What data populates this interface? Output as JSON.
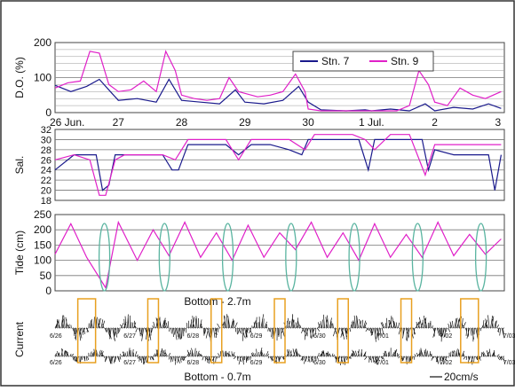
{
  "chart_data": [
    {
      "type": "line",
      "panel": "do",
      "ylabel": "D.O. (%)",
      "ylim": [
        0,
        200
      ],
      "yticks": [
        0,
        100,
        200
      ],
      "x_tick_labels": [
        {
          "t": 0.0,
          "label": "26 Jun."
        },
        {
          "t": 1.0,
          "label": "27"
        },
        {
          "t": 2.0,
          "label": "28"
        },
        {
          "t": 3.0,
          "label": "29"
        },
        {
          "t": 4.0,
          "label": "30"
        },
        {
          "t": 5.0,
          "label": "1 Jul."
        },
        {
          "t": 6.0,
          "label": "2"
        },
        {
          "t": 7.0,
          "label": "3"
        }
      ],
      "xlim": [
        0,
        7.1
      ],
      "legend": "top-right",
      "series": [
        {
          "name": "Stn. 7",
          "color": "#1a1a8c",
          "x": [
            0,
            0.25,
            0.5,
            0.7,
            0.9,
            1.0,
            1.3,
            1.6,
            1.8,
            2.0,
            2.3,
            2.6,
            2.85,
            3.0,
            3.3,
            3.6,
            3.85,
            4.0,
            4.2,
            4.6,
            4.9,
            5.0,
            5.3,
            5.6,
            5.85,
            6.0,
            6.3,
            6.6,
            6.85,
            7.05
          ],
          "y": [
            78,
            60,
            75,
            95,
            55,
            35,
            40,
            30,
            95,
            35,
            30,
            25,
            65,
            30,
            25,
            35,
            75,
            30,
            8,
            5,
            8,
            5,
            10,
            5,
            25,
            5,
            15,
            10,
            25,
            12
          ]
        },
        {
          "name": "Stn. 9",
          "color": "#e020c8",
          "x": [
            0,
            0.2,
            0.4,
            0.55,
            0.7,
            0.85,
            1.0,
            1.2,
            1.4,
            1.6,
            1.75,
            1.9,
            2.0,
            2.2,
            2.4,
            2.6,
            2.75,
            2.9,
            3.0,
            3.2,
            3.4,
            3.6,
            3.8,
            3.95,
            4.0,
            4.2,
            4.5,
            4.8,
            5.0,
            5.2,
            5.4,
            5.6,
            5.75,
            5.9,
            6.0,
            6.2,
            6.4,
            6.6,
            6.8,
            7.05
          ],
          "y": [
            70,
            85,
            90,
            175,
            170,
            80,
            60,
            65,
            90,
            60,
            175,
            120,
            50,
            40,
            35,
            40,
            100,
            60,
            55,
            45,
            50,
            60,
            110,
            60,
            10,
            5,
            5,
            5,
            5,
            5,
            5,
            20,
            120,
            80,
            30,
            20,
            70,
            50,
            40,
            60
          ]
        }
      ]
    },
    {
      "type": "line",
      "panel": "sal",
      "ylabel": "Sal.",
      "ylim": [
        18,
        32
      ],
      "yticks": [
        18,
        20,
        22,
        24,
        26,
        28,
        30,
        32
      ],
      "xlim": [
        0,
        7.1
      ],
      "series": [
        {
          "name": "Stn. 7",
          "color": "#1a1a8c",
          "x": [
            0,
            0.3,
            0.5,
            0.65,
            0.75,
            0.85,
            0.95,
            1.1,
            1.4,
            1.7,
            1.85,
            1.95,
            2.1,
            2.4,
            2.7,
            2.9,
            3.1,
            3.4,
            3.7,
            3.9,
            4.0,
            4.2,
            4.5,
            4.8,
            4.95,
            5.05,
            5.3,
            5.6,
            5.8,
            5.9,
            6.0,
            6.3,
            6.6,
            6.85,
            6.95,
            7.05
          ],
          "y": [
            24,
            27,
            27,
            27,
            20,
            21,
            27,
            27,
            27,
            27,
            24,
            24,
            29,
            29,
            29,
            27,
            29,
            29,
            28,
            27,
            30,
            30,
            30,
            30,
            24,
            30,
            30,
            30,
            30,
            24,
            28,
            27,
            27,
            27,
            20,
            27
          ]
        },
        {
          "name": "Stn. 9",
          "color": "#e020c8",
          "x": [
            0,
            0.3,
            0.55,
            0.7,
            0.8,
            0.95,
            1.1,
            1.4,
            1.7,
            1.9,
            2.1,
            2.4,
            2.7,
            2.9,
            3.1,
            3.4,
            3.7,
            3.95,
            4.1,
            4.4,
            4.7,
            4.9,
            5.05,
            5.3,
            5.6,
            5.85,
            6.0,
            6.3,
            6.6,
            6.9,
            7.05
          ],
          "y": [
            26,
            27,
            26,
            19,
            19,
            26,
            27,
            27,
            27,
            26,
            30,
            30,
            30,
            26,
            30,
            30,
            30,
            28,
            31,
            31,
            31,
            30,
            28,
            31,
            31,
            23,
            29,
            29,
            29,
            29,
            29
          ]
        }
      ]
    },
    {
      "type": "line",
      "panel": "tide",
      "ylabel": "Tide (cm)",
      "ylim": [
        0,
        250
      ],
      "yticks": [
        0,
        50,
        100,
        150,
        200,
        250
      ],
      "xlim": [
        0,
        7.1
      ],
      "series": [
        {
          "name": "Tide",
          "color": "#e020c8",
          "x": [
            0,
            0.25,
            0.5,
            0.8,
            1.0,
            1.3,
            1.55,
            1.8,
            2.05,
            2.3,
            2.55,
            2.8,
            3.05,
            3.3,
            3.55,
            3.8,
            4.05,
            4.3,
            4.55,
            4.8,
            5.05,
            5.3,
            5.55,
            5.8,
            6.05,
            6.3,
            6.55,
            6.8,
            7.05
          ],
          "y": [
            120,
            220,
            110,
            10,
            225,
            100,
            200,
            115,
            225,
            110,
            190,
            100,
            215,
            110,
            190,
            135,
            225,
            110,
            190,
            100,
            220,
            110,
            185,
            110,
            225,
            115,
            185,
            120,
            170
          ]
        }
      ],
      "highlights": {
        "color": "#5ab4a0",
        "centers": [
          0.78,
          1.73,
          2.73,
          3.73,
          4.73,
          5.73,
          6.73
        ]
      }
    },
    {
      "type": "line",
      "panel": "current",
      "ylabel": "Current",
      "xlim": [
        0,
        7.1
      ],
      "top_label": "Bottom - 2.7m",
      "bottom_label": "Bottom - 0.7m",
      "scale_label": "20cm/s",
      "date_ticks_upper": [
        "6/26",
        "6/27",
        "6/28",
        "6/29",
        "6/30",
        "7/01",
        "7/02",
        "7/03"
      ],
      "date_ticks_lower": [
        "6/26",
        "6/27",
        "6/28",
        "6/29",
        "6/30",
        "7/01",
        "7/02",
        "7/03"
      ],
      "box_color": "#e8a020",
      "boxes": [
        0.5,
        1.55,
        2.55,
        3.55,
        4.55,
        5.55,
        6.55
      ]
    }
  ]
}
